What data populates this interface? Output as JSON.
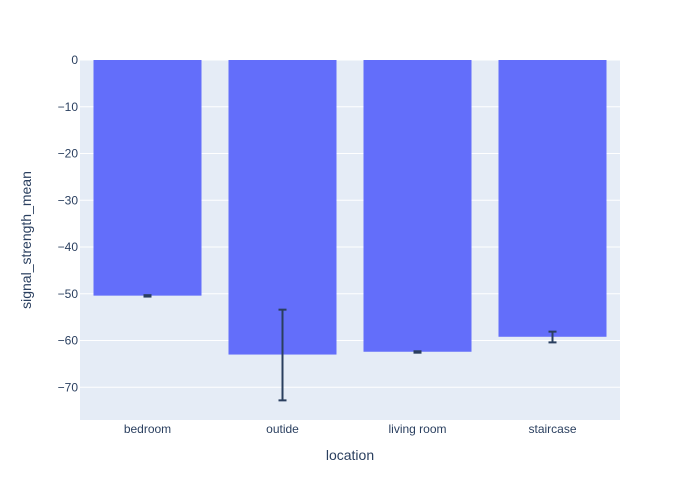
{
  "chart_data": {
    "type": "bar",
    "categories": [
      "bedroom",
      "outide",
      "living room",
      "staircase"
    ],
    "series": [
      {
        "values": [
          -50.4,
          -63.0,
          -62.4,
          -59.2
        ],
        "error_low": [
          -50.6,
          -72.8,
          -62.6,
          -60.4
        ],
        "error_high": [
          -50.3,
          -53.4,
          -62.3,
          -58.1
        ]
      }
    ],
    "xlabel": "location",
    "ylabel": "signal_strength_mean",
    "ylim": [
      -77,
      0
    ],
    "yticks": [
      0,
      -10,
      -20,
      -30,
      -40,
      -50,
      -60,
      -70
    ],
    "ytick_labels": [
      "0",
      "−10",
      "−20",
      "−30",
      "−40",
      "−50",
      "−60",
      "−70"
    ],
    "grid": true,
    "colors": {
      "bar": "#636efa",
      "plot_bg": "#e5ecf6",
      "grid": "#ffffff",
      "error_bar": "#2a3f5f",
      "text": "#2a3f5f"
    }
  }
}
